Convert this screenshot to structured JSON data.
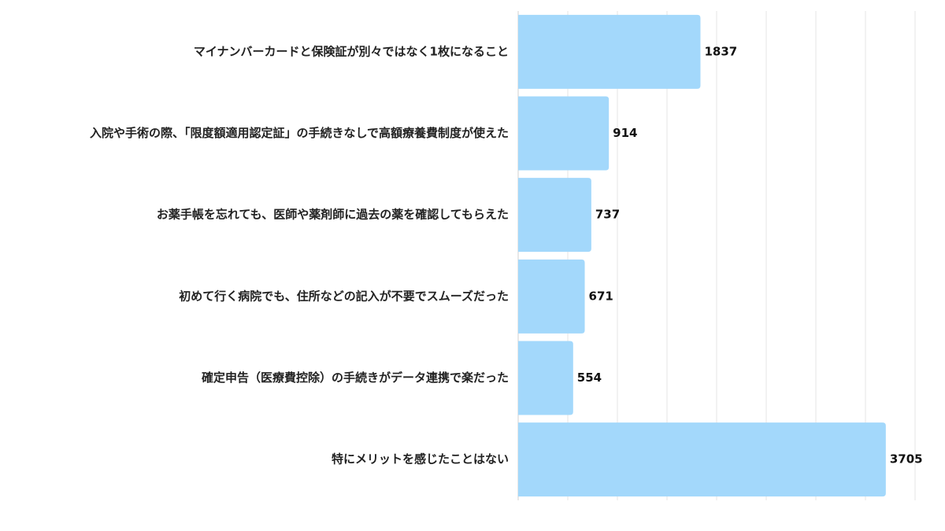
{
  "chart_data": {
    "type": "bar",
    "orientation": "horizontal",
    "categories": [
      "マイナンバーカードと保険証が別々ではなく1枚になること",
      "入院や手術の際、「限度額適用認定証」の手続きなしで高額療養費制度が使えた",
      "お薬手帳を忘れても、医師や薬剤師に過去の薬を確認してもらえた",
      "初めて行く病院でも、住所などの記入が不要でスムーズだった",
      "確定申告（医療費控除）の手続きがデータ連携で楽だった",
      "特にメリットを感じたことはない"
    ],
    "values": [
      1837,
      914,
      737,
      671,
      554,
      3705
    ],
    "xlim": [
      0,
      4000
    ],
    "grid": true,
    "bar_color": "#a3d8fb",
    "title": "",
    "xlabel": "",
    "ylabel": ""
  }
}
